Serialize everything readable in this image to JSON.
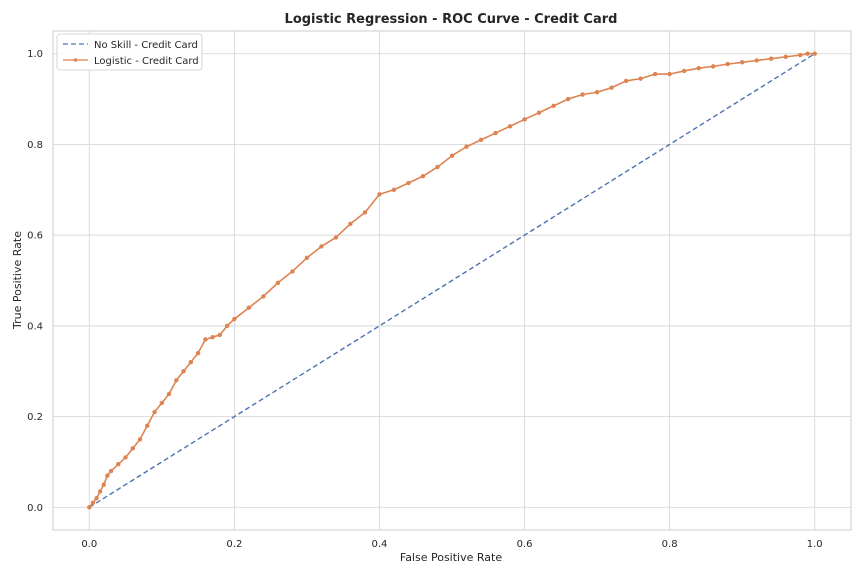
{
  "chart_data": {
    "type": "line",
    "title": "Logistic Regression - ROC Curve - Credit Card",
    "xlabel": "False Positive Rate",
    "ylabel": "True Positive Rate",
    "xlim": [
      -0.05,
      1.05
    ],
    "ylim": [
      -0.05,
      1.05
    ],
    "xticks": [
      "0.0",
      "0.2",
      "0.4",
      "0.6",
      "0.8",
      "1.0"
    ],
    "yticks": [
      "0.0",
      "0.2",
      "0.4",
      "0.6",
      "0.8",
      "1.0"
    ],
    "grid": true,
    "legend_position": "top-left",
    "series": [
      {
        "name": "No Skill - Credit Card",
        "style": "dashed",
        "color": "#4c72b0",
        "x": [
          0,
          1
        ],
        "y": [
          0,
          1
        ]
      },
      {
        "name": "Logistic - Credit Card",
        "style": "solid-markers",
        "color": "#dd8452",
        "x": [
          0,
          0.005,
          0.01,
          0.015,
          0.02,
          0.025,
          0.03,
          0.04,
          0.05,
          0.06,
          0.07,
          0.08,
          0.09,
          0.1,
          0.11,
          0.12,
          0.13,
          0.14,
          0.15,
          0.16,
          0.17,
          0.18,
          0.19,
          0.2,
          0.22,
          0.24,
          0.26,
          0.28,
          0.3,
          0.32,
          0.34,
          0.36,
          0.38,
          0.4,
          0.42,
          0.44,
          0.46,
          0.48,
          0.5,
          0.52,
          0.54,
          0.56,
          0.58,
          0.6,
          0.62,
          0.64,
          0.66,
          0.68,
          0.7,
          0.72,
          0.74,
          0.76,
          0.78,
          0.8,
          0.82,
          0.84,
          0.86,
          0.88,
          0.9,
          0.92,
          0.94,
          0.96,
          0.98,
          0.99,
          1.0
        ],
        "y": [
          0,
          0.01,
          0.02,
          0.035,
          0.05,
          0.07,
          0.08,
          0.095,
          0.11,
          0.13,
          0.15,
          0.18,
          0.21,
          0.23,
          0.25,
          0.28,
          0.3,
          0.32,
          0.34,
          0.37,
          0.375,
          0.38,
          0.4,
          0.415,
          0.44,
          0.465,
          0.495,
          0.52,
          0.55,
          0.575,
          0.595,
          0.625,
          0.65,
          0.69,
          0.7,
          0.715,
          0.73,
          0.75,
          0.775,
          0.795,
          0.81,
          0.825,
          0.84,
          0.855,
          0.87,
          0.885,
          0.9,
          0.91,
          0.915,
          0.925,
          0.94,
          0.945,
          0.955,
          0.955,
          0.962,
          0.968,
          0.972,
          0.977,
          0.981,
          0.985,
          0.989,
          0.993,
          0.997,
          1.0,
          1.0
        ]
      }
    ]
  }
}
